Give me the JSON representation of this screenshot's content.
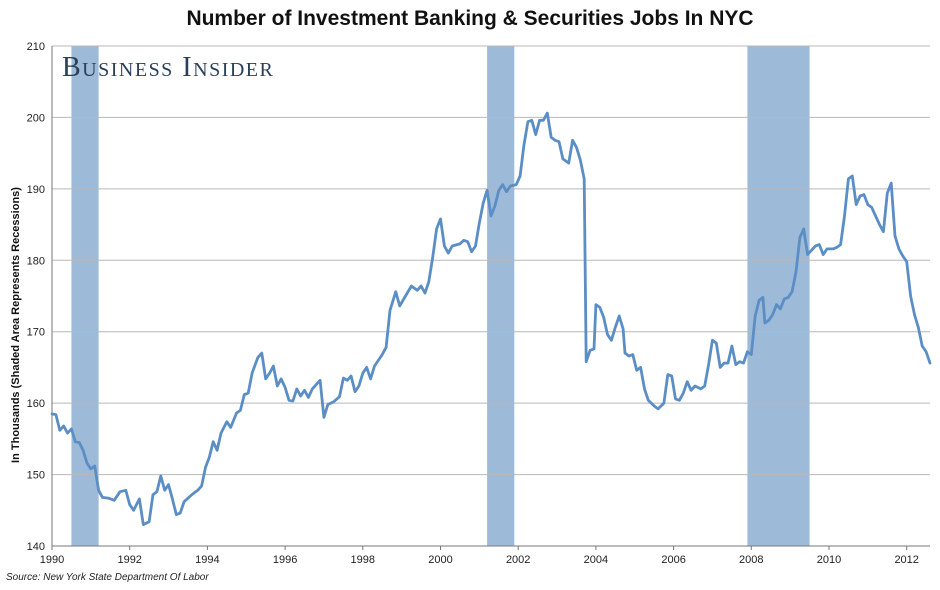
{
  "chart_data": {
    "type": "line",
    "title": "Number of Investment Banking & Securities Jobs In NYC",
    "ylabel": "In Thousands (Shaded Area Represents Recessions)",
    "xlabel": "",
    "ylim": [
      140,
      210
    ],
    "xlim": [
      1990.0,
      2012.6
    ],
    "y_ticks": [
      "140",
      "150",
      "160",
      "170",
      "180",
      "190",
      "200",
      "210"
    ],
    "x_ticks": [
      "1990",
      "1992",
      "1994",
      "1996",
      "1998",
      "2000",
      "2002",
      "2004",
      "2006",
      "2008",
      "2010",
      "2012"
    ],
    "grid": "horizontal",
    "line_color": "#5b8ec5",
    "recession_color": "#9dbad8",
    "recessions": [
      {
        "start": 1990.5,
        "end": 1991.2
      },
      {
        "start": 2001.2,
        "end": 2001.9
      },
      {
        "start": 2007.9,
        "end": 2009.5
      }
    ],
    "series": [
      {
        "points": [
          [
            1990.0,
            158.5
          ],
          [
            1990.1,
            158.4
          ],
          [
            1990.2,
            156.2
          ],
          [
            1990.3,
            156.8
          ],
          [
            1990.4,
            155.8
          ],
          [
            1990.5,
            156.4
          ],
          [
            1990.6,
            154.6
          ],
          [
            1990.7,
            154.5
          ],
          [
            1990.8,
            153.4
          ],
          [
            1990.9,
            151.6
          ],
          [
            1991.0,
            150.8
          ],
          [
            1991.1,
            151.2
          ],
          [
            1991.2,
            147.8
          ],
          [
            1991.3,
            146.8
          ],
          [
            1991.45,
            146.7
          ],
          [
            1991.6,
            146.4
          ],
          [
            1991.75,
            147.6
          ],
          [
            1991.9,
            147.8
          ],
          [
            1992.0,
            145.8
          ],
          [
            1992.1,
            145.0
          ],
          [
            1992.25,
            146.6
          ],
          [
            1992.35,
            143.0
          ],
          [
            1992.5,
            143.4
          ],
          [
            1992.6,
            147.2
          ],
          [
            1992.7,
            147.6
          ],
          [
            1992.8,
            149.8
          ],
          [
            1992.9,
            147.8
          ],
          [
            1993.0,
            148.6
          ],
          [
            1993.1,
            146.6
          ],
          [
            1993.2,
            144.4
          ],
          [
            1993.3,
            144.6
          ],
          [
            1993.4,
            146.2
          ],
          [
            1993.6,
            147.2
          ],
          [
            1993.75,
            147.8
          ],
          [
            1993.85,
            148.4
          ],
          [
            1993.95,
            151.0
          ],
          [
            1994.05,
            152.4
          ],
          [
            1994.15,
            154.6
          ],
          [
            1994.25,
            153.4
          ],
          [
            1994.35,
            155.8
          ],
          [
            1994.5,
            157.4
          ],
          [
            1994.6,
            156.6
          ],
          [
            1994.75,
            158.6
          ],
          [
            1994.85,
            159.0
          ],
          [
            1994.95,
            161.2
          ],
          [
            1995.05,
            161.4
          ],
          [
            1995.15,
            164.2
          ],
          [
            1995.3,
            166.4
          ],
          [
            1995.4,
            167.0
          ],
          [
            1995.5,
            163.4
          ],
          [
            1995.6,
            164.2
          ],
          [
            1995.7,
            165.2
          ],
          [
            1995.8,
            162.4
          ],
          [
            1995.9,
            163.4
          ],
          [
            1996.0,
            162.2
          ],
          [
            1996.1,
            160.4
          ],
          [
            1996.2,
            160.3
          ],
          [
            1996.3,
            162.0
          ],
          [
            1996.4,
            161.0
          ],
          [
            1996.5,
            161.8
          ],
          [
            1996.6,
            160.8
          ],
          [
            1996.7,
            162.0
          ],
          [
            1996.8,
            162.6
          ],
          [
            1996.9,
            163.2
          ],
          [
            1997.0,
            158.0
          ],
          [
            1997.1,
            159.8
          ],
          [
            1997.25,
            160.2
          ],
          [
            1997.4,
            160.9
          ],
          [
            1997.5,
            163.5
          ],
          [
            1997.6,
            163.2
          ],
          [
            1997.7,
            163.8
          ],
          [
            1997.8,
            161.6
          ],
          [
            1997.9,
            162.4
          ],
          [
            1998.0,
            164.2
          ],
          [
            1998.1,
            165.0
          ],
          [
            1998.2,
            163.4
          ],
          [
            1998.3,
            165.2
          ],
          [
            1998.5,
            166.8
          ],
          [
            1998.6,
            167.8
          ],
          [
            1998.7,
            173.0
          ],
          [
            1998.85,
            175.6
          ],
          [
            1998.95,
            173.6
          ],
          [
            1999.1,
            175.0
          ],
          [
            1999.25,
            176.4
          ],
          [
            1999.4,
            175.8
          ],
          [
            1999.5,
            176.4
          ],
          [
            1999.6,
            175.4
          ],
          [
            1999.7,
            177.0
          ],
          [
            1999.8,
            180.4
          ],
          [
            1999.9,
            184.4
          ],
          [
            2000.0,
            185.8
          ],
          [
            2000.1,
            182.0
          ],
          [
            2000.2,
            181.0
          ],
          [
            2000.3,
            182.0
          ],
          [
            2000.5,
            182.3
          ],
          [
            2000.6,
            182.8
          ],
          [
            2000.7,
            182.6
          ],
          [
            2000.8,
            181.2
          ],
          [
            2000.9,
            182.0
          ],
          [
            2001.0,
            185.2
          ],
          [
            2001.1,
            188.0
          ],
          [
            2001.2,
            189.8
          ],
          [
            2001.3,
            186.2
          ],
          [
            2001.4,
            187.6
          ],
          [
            2001.5,
            189.8
          ],
          [
            2001.6,
            190.6
          ],
          [
            2001.7,
            189.6
          ],
          [
            2001.8,
            190.4
          ],
          [
            2001.95,
            190.6
          ],
          [
            2002.05,
            191.8
          ],
          [
            2002.15,
            196.2
          ],
          [
            2002.25,
            199.4
          ],
          [
            2002.35,
            199.6
          ],
          [
            2002.45,
            197.6
          ],
          [
            2002.55,
            199.6
          ],
          [
            2002.65,
            199.6
          ],
          [
            2002.75,
            200.6
          ],
          [
            2002.85,
            197.2
          ],
          [
            2002.95,
            196.8
          ],
          [
            2003.05,
            196.6
          ],
          [
            2003.15,
            194.2
          ],
          [
            2003.3,
            193.6
          ],
          [
            2003.4,
            196.8
          ],
          [
            2003.5,
            195.8
          ],
          [
            2003.6,
            194.0
          ],
          [
            2003.7,
            191.4
          ],
          [
            2003.75,
            165.8
          ],
          [
            2003.85,
            167.4
          ],
          [
            2003.95,
            167.6
          ],
          [
            2004.0,
            173.8
          ],
          [
            2004.1,
            173.4
          ],
          [
            2004.2,
            172.0
          ],
          [
            2004.3,
            169.6
          ],
          [
            2004.4,
            168.8
          ],
          [
            2004.5,
            170.6
          ],
          [
            2004.6,
            172.2
          ],
          [
            2004.7,
            170.4
          ],
          [
            2004.75,
            167.0
          ],
          [
            2004.85,
            166.6
          ],
          [
            2004.95,
            166.8
          ],
          [
            2005.05,
            164.6
          ],
          [
            2005.15,
            165.0
          ],
          [
            2005.25,
            162.0
          ],
          [
            2005.35,
            160.4
          ],
          [
            2005.5,
            159.6
          ],
          [
            2005.6,
            159.2
          ],
          [
            2005.75,
            160.0
          ],
          [
            2005.85,
            164.0
          ],
          [
            2005.95,
            163.8
          ],
          [
            2006.05,
            160.6
          ],
          [
            2006.15,
            160.4
          ],
          [
            2006.25,
            161.4
          ],
          [
            2006.35,
            163.0
          ],
          [
            2006.45,
            161.8
          ],
          [
            2006.55,
            162.4
          ],
          [
            2006.7,
            162.0
          ],
          [
            2006.8,
            162.4
          ],
          [
            2006.9,
            165.4
          ],
          [
            2007.0,
            168.8
          ],
          [
            2007.1,
            168.4
          ],
          [
            2007.2,
            165.0
          ],
          [
            2007.3,
            165.6
          ],
          [
            2007.4,
            165.6
          ],
          [
            2007.5,
            168.0
          ],
          [
            2007.6,
            165.4
          ],
          [
            2007.7,
            165.8
          ],
          [
            2007.8,
            165.6
          ],
          [
            2007.9,
            167.2
          ],
          [
            2008.0,
            166.8
          ],
          [
            2008.1,
            172.2
          ],
          [
            2008.2,
            174.4
          ],
          [
            2008.3,
            174.8
          ],
          [
            2008.35,
            171.2
          ],
          [
            2008.45,
            171.6
          ],
          [
            2008.55,
            172.4
          ],
          [
            2008.65,
            173.8
          ],
          [
            2008.75,
            173.2
          ],
          [
            2008.85,
            174.6
          ],
          [
            2008.95,
            174.8
          ],
          [
            2009.05,
            175.6
          ],
          [
            2009.15,
            178.4
          ],
          [
            2009.25,
            183.2
          ],
          [
            2009.35,
            184.4
          ],
          [
            2009.45,
            180.8
          ],
          [
            2009.55,
            181.4
          ],
          [
            2009.65,
            182.0
          ],
          [
            2009.75,
            182.2
          ],
          [
            2009.85,
            180.8
          ],
          [
            2009.95,
            181.6
          ],
          [
            2010.1,
            181.6
          ],
          [
            2010.2,
            181.8
          ],
          [
            2010.3,
            182.2
          ],
          [
            2010.4,
            186.2
          ],
          [
            2010.5,
            191.4
          ],
          [
            2010.6,
            191.8
          ],
          [
            2010.7,
            187.8
          ],
          [
            2010.8,
            189.0
          ],
          [
            2010.9,
            189.2
          ],
          [
            2011.0,
            187.8
          ],
          [
            2011.1,
            187.4
          ],
          [
            2011.2,
            186.2
          ],
          [
            2011.3,
            185.0
          ],
          [
            2011.4,
            184.0
          ],
          [
            2011.5,
            189.4
          ],
          [
            2011.6,
            190.8
          ],
          [
            2011.7,
            183.4
          ],
          [
            2011.8,
            181.6
          ],
          [
            2011.9,
            180.6
          ],
          [
            2012.0,
            179.8
          ],
          [
            2012.1,
            175.0
          ],
          [
            2012.2,
            172.4
          ],
          [
            2012.3,
            170.6
          ],
          [
            2012.4,
            168.0
          ],
          [
            2012.5,
            167.2
          ],
          [
            2012.6,
            165.6
          ]
        ]
      }
    ]
  },
  "watermark": {
    "text": "Business Insider",
    "color": "#2a3f5a"
  },
  "source": "Source: New York State Department Of Labor"
}
